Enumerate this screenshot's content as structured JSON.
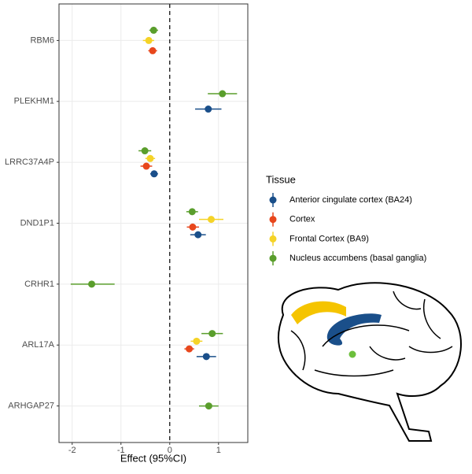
{
  "chart_data": {
    "type": "forest",
    "x_label": "Effect (95%CI)",
    "categories": [
      "RBM6",
      "PLEKHM1",
      "LRRC37A4P",
      "DND1P1",
      "CRHR1",
      "ARL17A",
      "ARHGAP27"
    ],
    "xlim": [
      -2.27,
      1.6
    ],
    "xticks": [
      -2,
      -1,
      0,
      1
    ],
    "vline": 0,
    "grid": true,
    "legend_title": "Tissue",
    "legend_position": "right",
    "series": [
      {
        "name": "Nucleus accumbens (basal ganglia)",
        "color": "#5a9e2c",
        "values": [
          -0.33,
          1.08,
          -0.51,
          0.46,
          -1.6,
          0.87,
          0.8
        ],
        "lower": [
          -0.42,
          0.78,
          -0.64,
          0.34,
          -2.03,
          0.65,
          0.6
        ],
        "upper": [
          -0.24,
          1.38,
          -0.38,
          0.58,
          -1.13,
          1.09,
          1.0
        ]
      },
      {
        "name": "Frontal Cortex (BA9)",
        "color": "#f5d327",
        "values": [
          -0.43,
          null,
          -0.4,
          0.85,
          null,
          0.55,
          null
        ],
        "lower": [
          -0.55,
          null,
          -0.5,
          0.6,
          null,
          0.43,
          null
        ],
        "upper": [
          -0.32,
          null,
          -0.3,
          1.1,
          null,
          0.67,
          null
        ]
      },
      {
        "name": "Cortex",
        "color": "#e8471c",
        "values": [
          -0.35,
          null,
          -0.48,
          0.47,
          null,
          0.4,
          null
        ],
        "lower": [
          -0.44,
          null,
          -0.6,
          0.35,
          null,
          0.3,
          null
        ],
        "upper": [
          -0.26,
          null,
          -0.36,
          0.6,
          null,
          0.5,
          null
        ]
      },
      {
        "name": "Anterior cingulate cortex (BA24)",
        "color": "#1a4f8a",
        "values": [
          null,
          0.79,
          -0.32,
          0.58,
          null,
          0.75,
          null
        ],
        "lower": [
          null,
          0.52,
          -0.4,
          0.42,
          null,
          0.55,
          null
        ],
        "upper": [
          null,
          1.06,
          -0.24,
          0.74,
          null,
          0.95,
          null
        ]
      }
    ],
    "legend_order": [
      3,
      2,
      1,
      0
    ]
  }
}
